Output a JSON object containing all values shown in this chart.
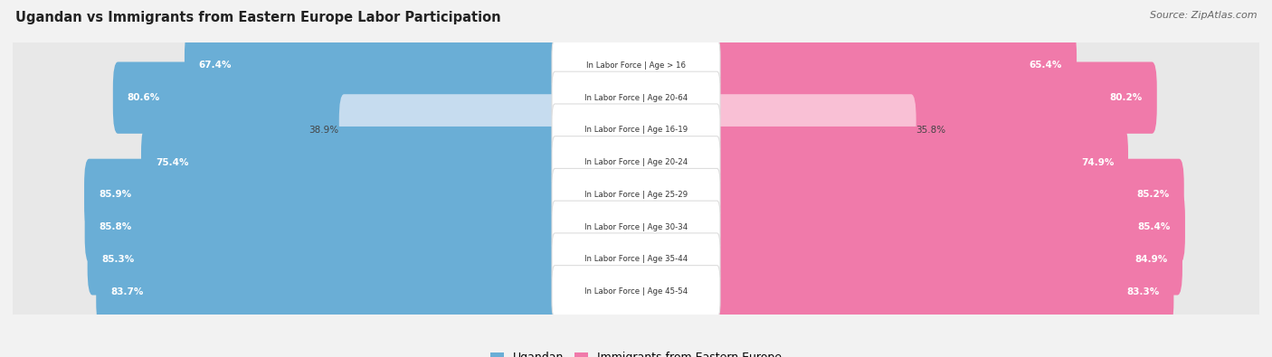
{
  "title": "Ugandan vs Immigrants from Eastern Europe Labor Participation",
  "source": "Source: ZipAtlas.com",
  "categories": [
    "In Labor Force | Age > 16",
    "In Labor Force | Age 20-64",
    "In Labor Force | Age 16-19",
    "In Labor Force | Age 20-24",
    "In Labor Force | Age 25-29",
    "In Labor Force | Age 30-34",
    "In Labor Force | Age 35-44",
    "In Labor Force | Age 45-54"
  ],
  "ugandan_values": [
    67.4,
    80.6,
    38.9,
    75.4,
    85.9,
    85.8,
    85.3,
    83.7
  ],
  "immigrant_values": [
    65.4,
    80.2,
    35.8,
    74.9,
    85.2,
    85.4,
    84.9,
    83.3
  ],
  "ugandan_color": "#6aaed6",
  "ugandan_color_light": "#c6dcef",
  "immigrant_color": "#f07aaa",
  "immigrant_color_light": "#f9c0d5",
  "background_color": "#f2f2f2",
  "row_color": "#e8e8e8",
  "label_box_color": "#ffffff"
}
